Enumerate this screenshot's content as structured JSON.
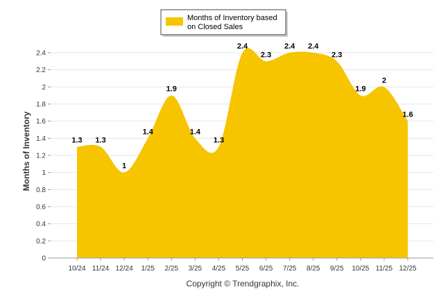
{
  "chart_data": {
    "type": "area",
    "categories": [
      "10/24",
      "11/24",
      "12/24",
      "1/25",
      "2/25",
      "3/25",
      "4/25",
      "5/25",
      "6/25",
      "7/25",
      "8/25",
      "9/25",
      "10/25",
      "11/25",
      "12/25"
    ],
    "series": [
      {
        "name": "Months of Inventory based on Closed Sales",
        "name_lines": [
          "Months of Inventory based",
          "on Closed Sales"
        ],
        "values": [
          1.3,
          1.3,
          1,
          1.4,
          1.9,
          1.4,
          1.3,
          2.4,
          2.3,
          2.4,
          2.4,
          2.3,
          1.9,
          2,
          1.6
        ],
        "labels": [
          "1.3",
          "1.3",
          "1",
          "1.4",
          "1.9",
          "1.4",
          "1.3",
          "2.4",
          "2.3",
          "2.4",
          "2.4",
          "2.3",
          "1.9",
          "2",
          "1.6"
        ],
        "color": "#F7C400"
      }
    ],
    "ylabel": "Months of Inventory",
    "ylim": [
      0,
      2.4
    ],
    "yticks": [
      "0",
      "0.2",
      "0.4",
      "0.6",
      "0.8",
      "1",
      "1.2",
      "1.4",
      "1.6",
      "1.8",
      "2",
      "2.2",
      "2.4"
    ],
    "grid": true,
    "legend_position": "top-center"
  },
  "credit": "Copyright © Trendgraphix, Inc."
}
